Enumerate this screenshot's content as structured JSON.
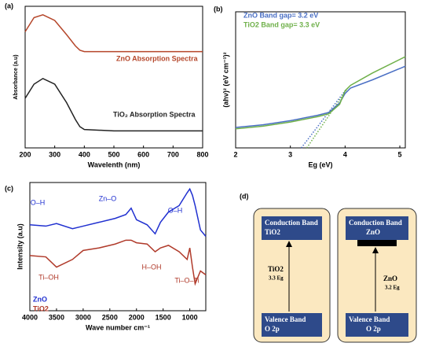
{
  "chart_data": [
    {
      "type": "line",
      "panel": "(a)",
      "xlabel": "Wavelenth (nm)",
      "ylabel": "Absorbance (a.u)",
      "xlim": [
        200,
        800
      ],
      "xticks": [
        200,
        300,
        400,
        500,
        600,
        700,
        800
      ],
      "ylim": [
        0,
        1
      ],
      "x": [
        200,
        230,
        260,
        300,
        340,
        370,
        385,
        400,
        500,
        600,
        800
      ],
      "series": [
        {
          "name": "ZnO Absorption Spectra",
          "color": "#b5462a",
          "values": [
            0.82,
            0.92,
            0.94,
            0.9,
            0.8,
            0.72,
            0.69,
            0.68,
            0.68,
            0.68,
            0.68
          ]
        },
        {
          "name": "TiO₂ Absorption Spectra",
          "color": "#222222",
          "values": [
            0.35,
            0.45,
            0.49,
            0.45,
            0.32,
            0.2,
            0.15,
            0.13,
            0.12,
            0.12,
            0.12
          ]
        }
      ]
    },
    {
      "type": "line",
      "panel": "(b)",
      "xlabel": "Eg (eV)",
      "ylabel": "(ahν)² (eV cm⁻¹)²",
      "xlim": [
        2,
        5.1
      ],
      "xticks": [
        2,
        3,
        4,
        5
      ],
      "ylim": [
        0,
        1
      ],
      "x": [
        2,
        2.5,
        3,
        3.5,
        3.7,
        3.9,
        4.0,
        4.1,
        4.5,
        5.1
      ],
      "series": [
        {
          "name": "ZnO Band gap= 3.2 eV",
          "color": "#4a6fc4",
          "values": [
            0.15,
            0.17,
            0.2,
            0.24,
            0.26,
            0.33,
            0.4,
            0.44,
            0.5,
            0.6
          ]
        },
        {
          "name": "TiO2 Band gap= 3.3 eV",
          "color": "#6fb04a",
          "values": [
            0.14,
            0.16,
            0.19,
            0.23,
            0.25,
            0.32,
            0.42,
            0.46,
            0.55,
            0.67
          ]
        }
      ],
      "fits": [
        {
          "color": "#4a6fc4",
          "x": [
            3.2,
            4.0
          ],
          "values": [
            0,
            0.42
          ]
        },
        {
          "color": "#6fb04a",
          "x": [
            3.3,
            4.05
          ],
          "values": [
            0,
            0.44
          ]
        }
      ]
    },
    {
      "type": "line",
      "panel": "(c)",
      "xlabel": "Wave number cm⁻¹",
      "ylabel": "Intensity (a.u)",
      "xlim": [
        4000,
        700
      ],
      "xticks": [
        4000,
        3500,
        3000,
        2500,
        2000,
        1500,
        1000
      ],
      "ylim": [
        0,
        1
      ],
      "x": [
        4000,
        3700,
        3500,
        3200,
        3000,
        2700,
        2400,
        2200,
        2100,
        2000,
        1800,
        1650,
        1550,
        1400,
        1200,
        1050,
        1000,
        950,
        900,
        800,
        700
      ],
      "series": [
        {
          "name": "ZnO",
          "color": "#2030d0",
          "values": [
            0.67,
            0.66,
            0.68,
            0.64,
            0.66,
            0.69,
            0.72,
            0.75,
            0.8,
            0.71,
            0.67,
            0.6,
            0.69,
            0.77,
            0.82,
            0.92,
            0.95,
            0.9,
            0.82,
            0.63,
            0.58
          ]
        },
        {
          "name": "TiO2",
          "color": "#b03a2a",
          "values": [
            0.43,
            0.42,
            0.34,
            0.4,
            0.47,
            0.49,
            0.52,
            0.55,
            0.55,
            0.53,
            0.52,
            0.46,
            0.49,
            0.51,
            0.46,
            0.4,
            0.49,
            0.34,
            0.21,
            0.31,
            0.28
          ]
        }
      ],
      "annotations": [
        "O–H",
        "Zn–O",
        "O–H",
        "Ti–OH",
        "H–OH",
        "Ti–O–Ti"
      ]
    }
  ],
  "diagram": {
    "panel": "(d)",
    "boxes": [
      {
        "conduction": "Conduction Band",
        "conduction_material": "TiO2",
        "material": "TiO2",
        "gap": "3.3 Eg",
        "valence": "Valence Band",
        "valence_orbital": "O 2p"
      },
      {
        "conduction": "Conduction Band",
        "conduction_material": "ZnO",
        "material": "ZnO",
        "gap": "3.2 Eg",
        "valence": "Valence Band",
        "valence_orbital": "O 2p"
      }
    ]
  }
}
